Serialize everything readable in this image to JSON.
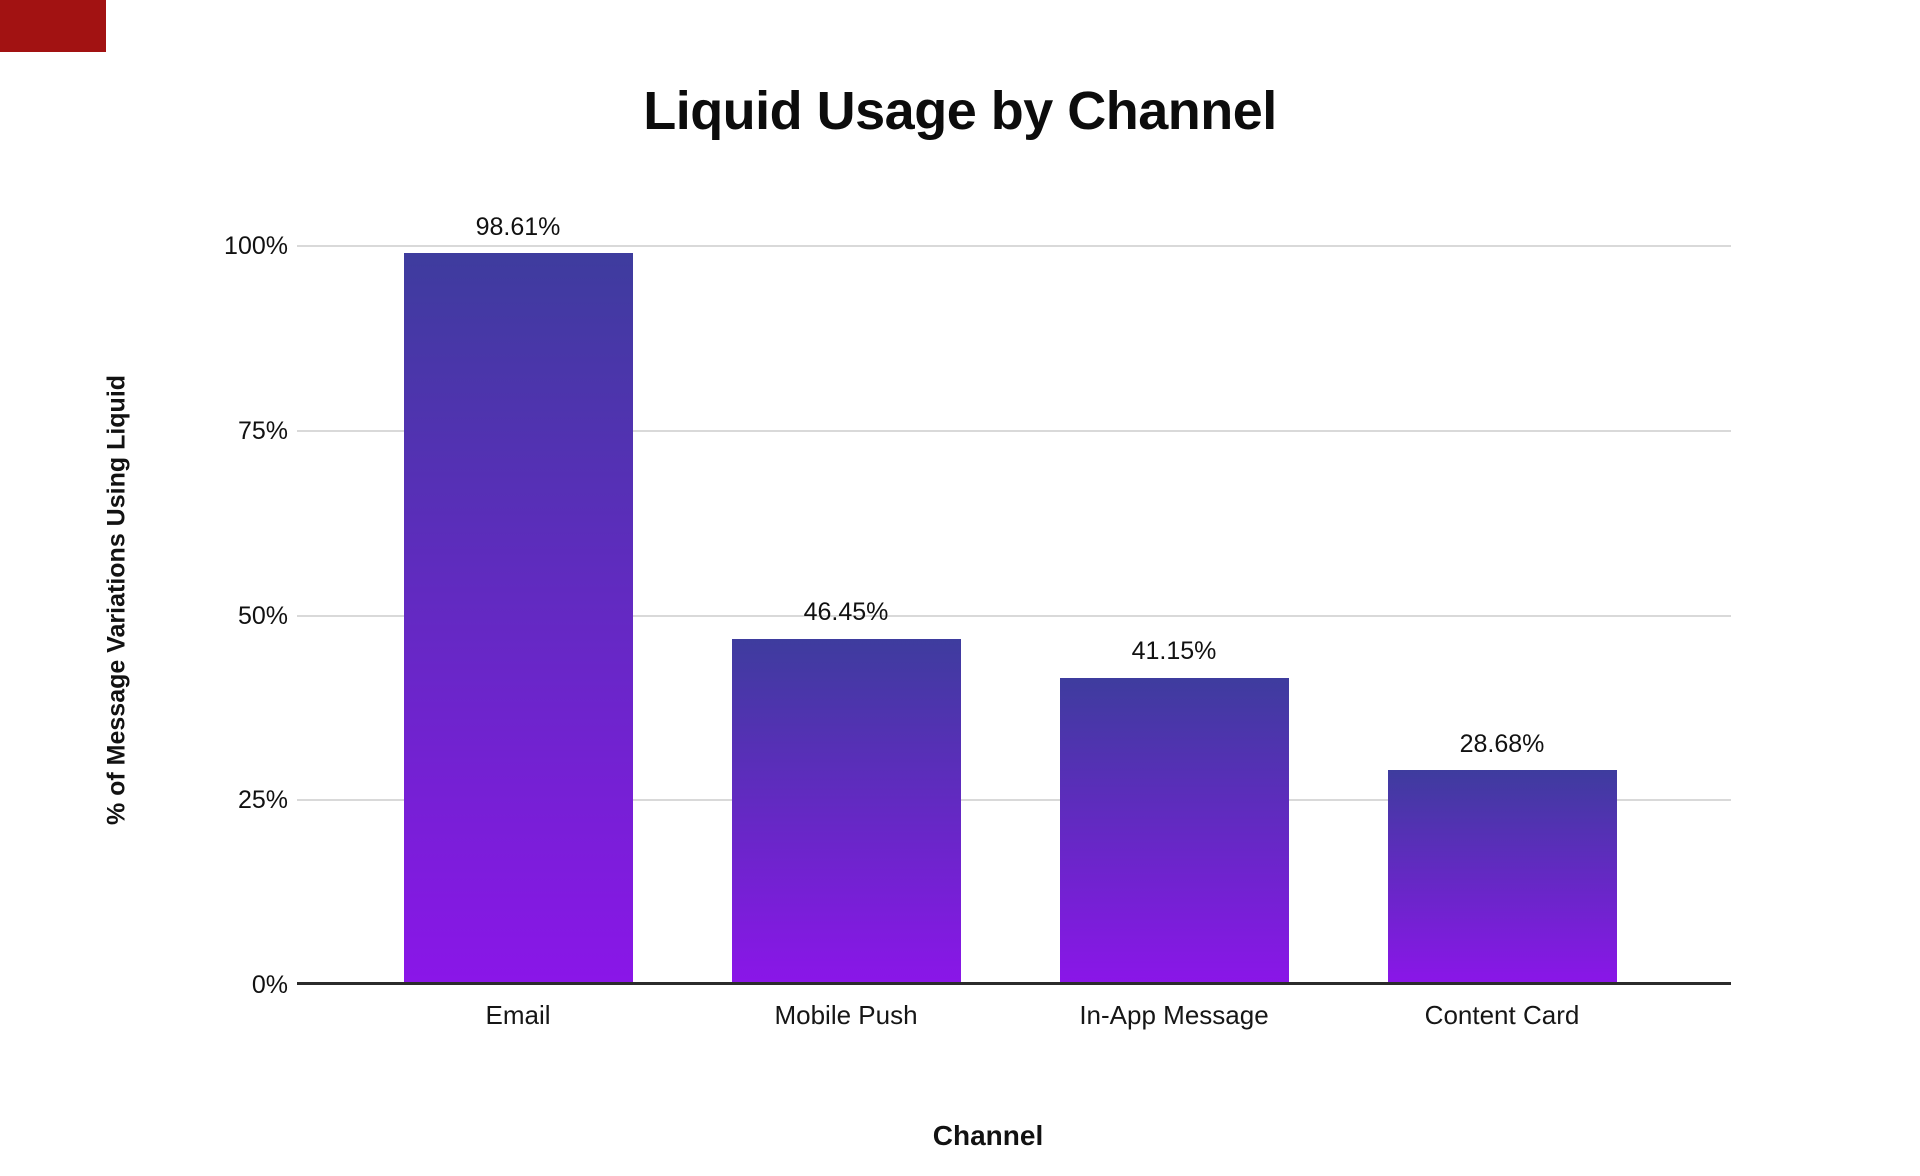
{
  "marker": {
    "color": "#a21212"
  },
  "chart_data": {
    "type": "bar",
    "title": "Liquid Usage by Channel",
    "xlabel": "Channel",
    "ylabel": "% of Message Variations Using Liquid",
    "categories": [
      "Email",
      "Mobile Push",
      "In-App Message",
      "Content Card"
    ],
    "values": [
      98.61,
      46.45,
      41.15,
      28.68
    ],
    "value_labels": [
      "98.61%",
      "46.45%",
      "41.15%",
      "28.68%"
    ],
    "ylim": [
      0,
      100
    ],
    "yticks": [
      {
        "value": 0,
        "label": "0%"
      },
      {
        "value": 25,
        "label": "25%"
      },
      {
        "value": 50,
        "label": "50%"
      },
      {
        "value": 75,
        "label": "75%"
      },
      {
        "value": 100,
        "label": "100%"
      }
    ],
    "grid": true,
    "legend": "none",
    "background_color": "#ffffff",
    "bar_gradient_top": "#3e3c9e",
    "bar_gradient_bottom": "#8a16e8",
    "gridline_color": "#d9d9d9",
    "axis_line_color": "#2b2b2b",
    "text_color": "#111111"
  }
}
